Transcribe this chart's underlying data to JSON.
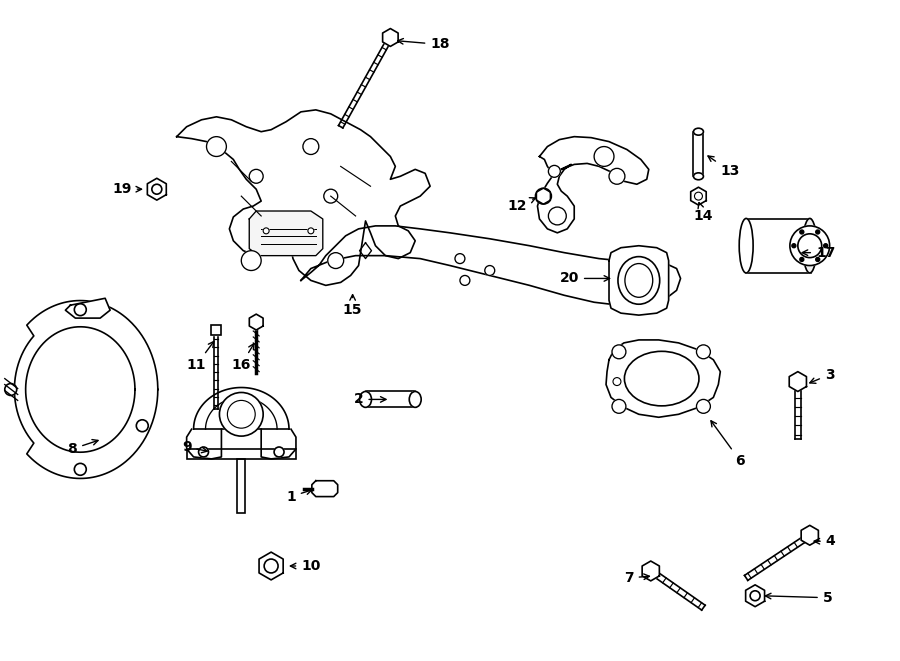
{
  "bg_color": "#ffffff",
  "line_color": "#000000",
  "figure_width": 9.0,
  "figure_height": 6.61,
  "dpi": 100
}
